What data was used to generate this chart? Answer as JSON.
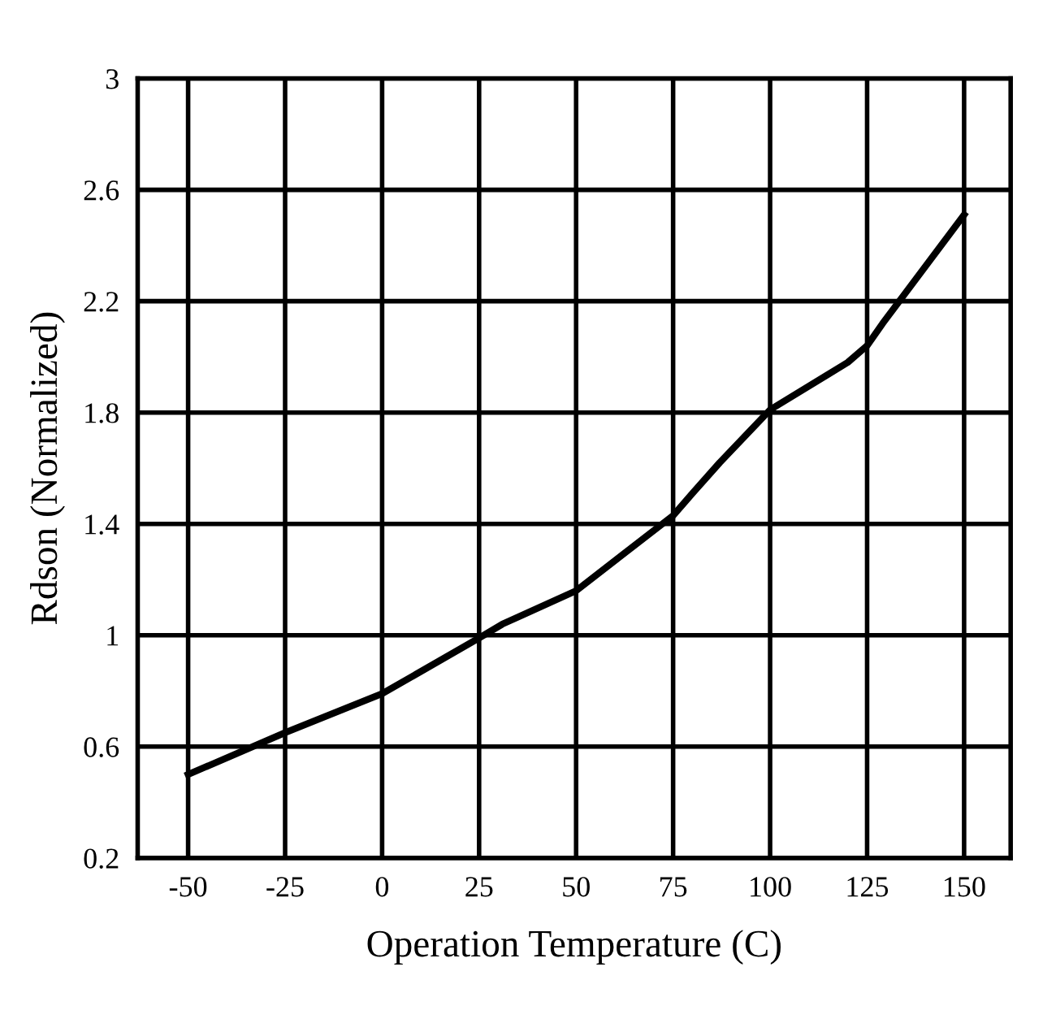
{
  "chart_data": {
    "type": "line",
    "xlabel": "Operation Temperature (C)",
    "ylabel": "Rdson (Normalized)",
    "xlim": [
      -63,
      162
    ],
    "xticks": [
      -50,
      -25,
      0,
      25,
      50,
      75,
      100,
      125,
      150
    ],
    "ylim": [
      0.2,
      3
    ],
    "yticks": [
      0.2,
      0.6,
      1,
      1.4,
      1.8,
      2.2,
      2.6,
      3
    ],
    "grid": true,
    "line_style": "solid",
    "marker": "none",
    "series": [
      {
        "color": "#000000",
        "x": [
          -50,
          -25,
          0,
          25,
          31,
          50,
          62,
          75,
          80,
          87,
          100,
          120,
          125,
          129,
          150
        ],
        "values": [
          0.5,
          0.65,
          0.79,
          0.99,
          1.04,
          1.16,
          1.29,
          1.43,
          1.51,
          1.62,
          1.81,
          1.98,
          2.04,
          2.12,
          2.51
        ]
      }
    ]
  }
}
